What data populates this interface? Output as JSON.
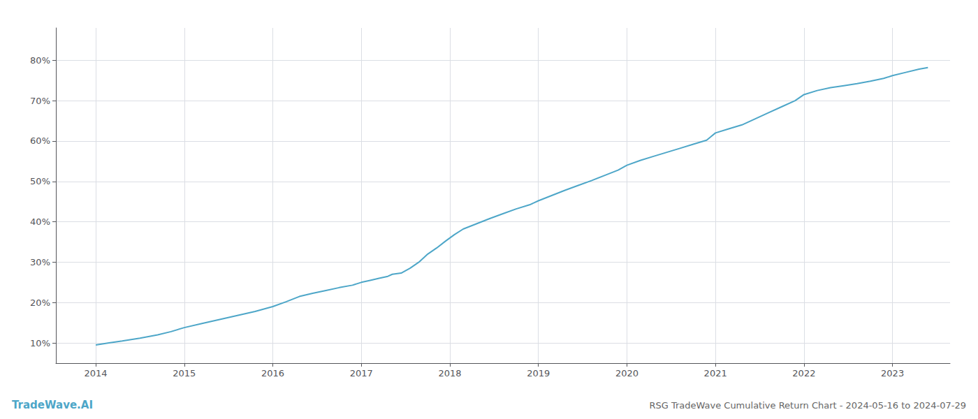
{
  "chart_data": {
    "type": "line",
    "title": "RSG TradeWave Cumulative Return Chart - 2024-05-16 to 2024-07-29",
    "annotations": [
      "TradeWave.AI"
    ],
    "color": "#4da6c8",
    "grid": true,
    "x": [
      2014.0,
      2014.15,
      2014.3,
      2014.5,
      2014.7,
      2014.85,
      2015.0,
      2015.2,
      2015.4,
      2015.6,
      2015.8,
      2016.0,
      2016.15,
      2016.3,
      2016.45,
      2016.6,
      2016.75,
      2016.9,
      2017.0,
      2017.1,
      2017.2,
      2017.3,
      2017.35,
      2017.45,
      2017.55,
      2017.65,
      2017.75,
      2017.85,
      2017.95,
      2018.05,
      2018.15,
      2018.3,
      2018.45,
      2018.6,
      2018.75,
      2018.9,
      2019.0,
      2019.15,
      2019.3,
      2019.45,
      2019.6,
      2019.75,
      2019.9,
      2020.0,
      2020.15,
      2020.3,
      2020.45,
      2020.6,
      2020.75,
      2020.9,
      2021.0,
      2021.15,
      2021.3,
      2021.45,
      2021.6,
      2021.75,
      2021.9,
      2022.0,
      2022.15,
      2022.3,
      2022.45,
      2022.6,
      2022.75,
      2022.9,
      2023.0,
      2023.15,
      2023.3,
      2023.4
    ],
    "values": [
      9.5,
      10.0,
      10.5,
      11.2,
      12.0,
      12.8,
      13.8,
      14.8,
      15.8,
      16.8,
      17.8,
      19.0,
      20.2,
      21.5,
      22.3,
      23.0,
      23.7,
      24.3,
      25.0,
      25.5,
      26.0,
      26.5,
      27.0,
      27.3,
      28.5,
      30.0,
      32.0,
      33.5,
      35.2,
      36.8,
      38.2,
      39.5,
      40.8,
      42.0,
      43.2,
      44.2,
      45.2,
      46.5,
      47.8,
      49.0,
      50.2,
      51.5,
      52.8,
      54.0,
      55.2,
      56.2,
      57.2,
      58.2,
      59.2,
      60.2,
      62.0,
      63.0,
      64.0,
      65.5,
      67.0,
      68.5,
      70.0,
      71.5,
      72.5,
      73.2,
      73.7,
      74.2,
      74.8,
      75.5,
      76.2,
      77.0,
      77.8,
      78.2
    ],
    "xlim": [
      2013.55,
      2023.65
    ],
    "xticks": [
      2014,
      2015,
      2016,
      2017,
      2018,
      2019,
      2020,
      2021,
      2022,
      2023
    ],
    "ylim": [
      5,
      88
    ],
    "yticks": [
      {
        "value": 10,
        "label": "10%"
      },
      {
        "value": 20,
        "label": "20%"
      },
      {
        "value": 30,
        "label": "30%"
      },
      {
        "value": 40,
        "label": "40%"
      },
      {
        "value": 50,
        "label": "50%"
      },
      {
        "value": 60,
        "label": "60%"
      },
      {
        "value": 70,
        "label": "70%"
      },
      {
        "value": 80,
        "label": "80%"
      }
    ]
  }
}
